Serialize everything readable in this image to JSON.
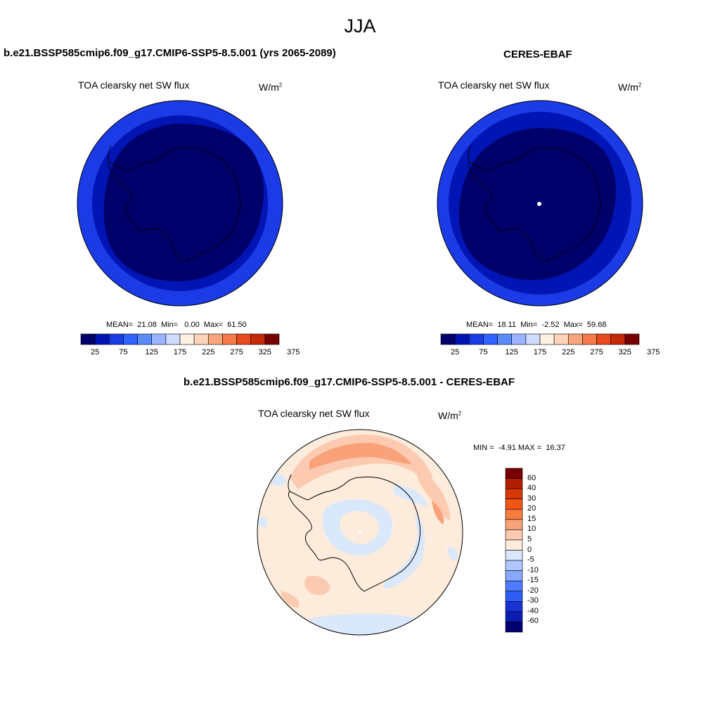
{
  "figure": {
    "title": "JJA"
  },
  "panels": [
    {
      "title": "b.e21.BSSP585cmip6.f09_g17.CMIP6-SSP5-8.5.001 (yrs 2065-2089)",
      "variable": "TOA clearsky net SW flux",
      "units": "W/m",
      "units_sup": "2",
      "stats": "MEAN=  21.08  Min=   0.00  Max=  61.50",
      "colorbar_ticks": [
        "25",
        "75",
        "125",
        "175",
        "225",
        "275",
        "325",
        "375"
      ]
    },
    {
      "title": "CERES-EBAF",
      "variable": "TOA clearsky net SW flux",
      "units": "W/m",
      "units_sup": "2",
      "stats": "MEAN=  18.11  Min=  -2.52  Max=  59.68",
      "colorbar_ticks": [
        "25",
        "75",
        "125",
        "175",
        "225",
        "275",
        "325",
        "375"
      ]
    },
    {
      "title": "b.e21.BSSP585cmip6.f09_g17.CMIP6-SSP5-8.5.001 - CERES-EBAF",
      "variable": "TOA clearsky net SW flux",
      "units": "W/m",
      "units_sup": "2",
      "stats": "MIN =  -4.91 MAX =  16.37",
      "colorbar_ticks": [
        "60",
        "40",
        "30",
        "20",
        "15",
        "10",
        "5",
        "0",
        "-5",
        "-10",
        "-15",
        "-20",
        "-30",
        "-40",
        "-60"
      ]
    }
  ],
  "colors": {
    "abs_scale": [
      "#00006b",
      "#0015b4",
      "#1a3be6",
      "#2f63ff",
      "#5a8cff",
      "#9ab4ff",
      "#cfdcff",
      "#fff0e2",
      "#fcd2b8",
      "#f7a57c",
      "#f5794a",
      "#e8491c",
      "#c42808",
      "#7a0000"
    ],
    "diff_scale": [
      "#7a0000",
      "#b41e00",
      "#d83808",
      "#f05516",
      "#f87c40",
      "#f9a27a",
      "#fccab0",
      "#fdecdc",
      "#d9e8fb",
      "#b0c8ff",
      "#89a8ff",
      "#4f7bff",
      "#2f5df5",
      "#1733d3",
      "#0a1db0",
      "#000070"
    ]
  }
}
